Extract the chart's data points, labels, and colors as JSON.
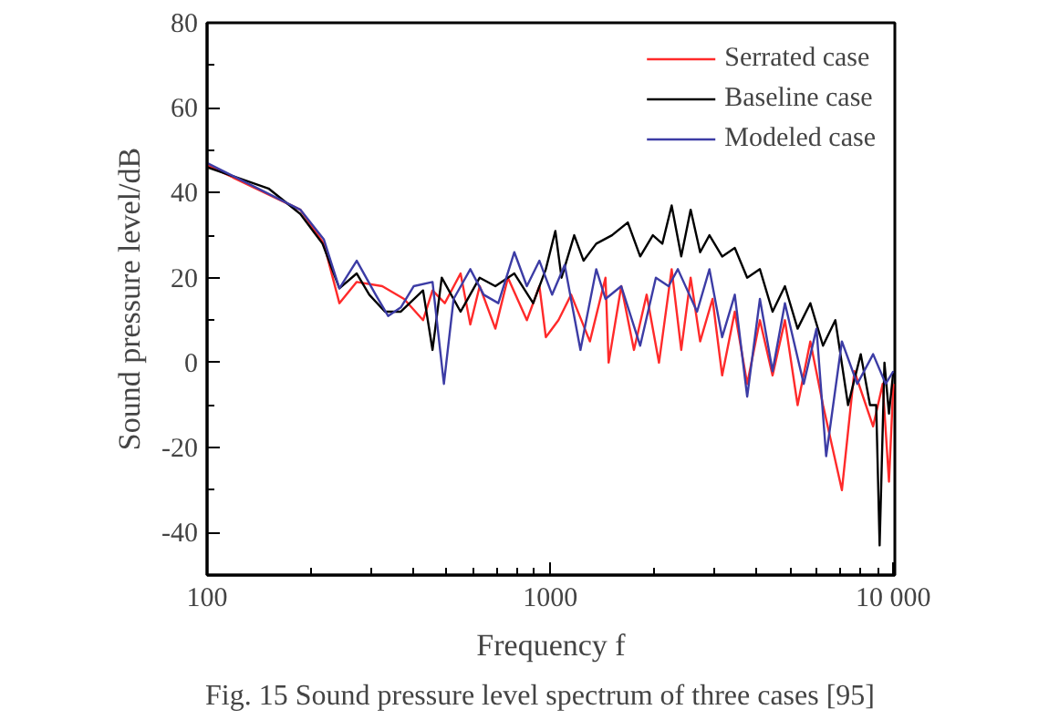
{
  "chart_data": {
    "type": "line",
    "xlabel": "Frequency f",
    "ylabel": "Sound pressure level/dB",
    "log": "x",
    "xlim": [
      100,
      10100
    ],
    "ylim": [
      -50,
      80
    ],
    "xticks": [
      100,
      {
        "value": 200,
        "label": null
      },
      {
        "value": 300,
        "label": null
      },
      {
        "value": 400,
        "label": null
      },
      {
        "value": 500,
        "label": null
      },
      {
        "value": 600,
        "label": null
      },
      {
        "value": 700,
        "label": null
      },
      {
        "value": 800,
        "label": null
      },
      {
        "value": 900,
        "label": null
      },
      1000,
      {
        "value": 2000,
        "label": null
      },
      {
        "value": 3000,
        "label": null
      },
      {
        "value": 4000,
        "label": null
      },
      {
        "value": 5000,
        "label": null
      },
      {
        "value": 6000,
        "label": null
      },
      {
        "value": 7000,
        "label": null
      },
      {
        "value": 8000,
        "label": null
      },
      {
        "value": 9000,
        "label": null
      },
      {
        "value": 10000,
        "label": "10 000"
      }
    ],
    "yticks": [
      -40,
      {
        "value": -30,
        "label": null
      },
      -20,
      {
        "value": -10,
        "label": null
      },
      0,
      {
        "value": 10,
        "label": null
      },
      20,
      {
        "value": 30,
        "label": null
      },
      40,
      {
        "value": 50,
        "label": null
      },
      60,
      {
        "value": 70,
        "label": null
      },
      80
    ],
    "grid": false,
    "legend": "top right",
    "line_style": "solid",
    "marker": "none",
    "series": [
      {
        "name": "Serrated case",
        "color": "#ff2a2a",
        "x": [
          100,
          187,
          219,
          243,
          273,
          324,
          375,
          426,
          454,
          493,
          548,
          585,
          623,
          692,
          753,
          855,
          930,
          971,
          1057,
          1151,
          1305,
          1449,
          1480,
          1611,
          1754,
          1910,
          2075,
          2259,
          2409,
          2566,
          2735,
          2972,
          3170,
          3451,
          3750,
          4084,
          4446,
          4831,
          5260,
          5728,
          6237,
          7080,
          7700,
          8730,
          9310,
          9710,
          10000
        ],
        "values": [
          46.5,
          36,
          28,
          14,
          19,
          18,
          15,
          10,
          17,
          14,
          21,
          9,
          18,
          8,
          20,
          10,
          18,
          6,
          10,
          16,
          5,
          20,
          0,
          18,
          3,
          16,
          0,
          22,
          3,
          20,
          5,
          15,
          -3,
          12,
          -5,
          10,
          -3,
          10,
          -10,
          5,
          -10,
          -30,
          -2,
          -15,
          -5,
          -28,
          -5
        ]
      },
      {
        "name": "Baseline case",
        "color": "#000000",
        "x": [
          100,
          151,
          187,
          217,
          243,
          273,
          297,
          330,
          367,
          426,
          454,
          483,
          548,
          623,
          692,
          786,
          892,
          971,
          1035,
          1079,
          1175,
          1251,
          1362,
          1514,
          1683,
          1829,
          1991,
          2122,
          2259,
          2409,
          2566,
          2735,
          2911,
          3170,
          3451,
          3750,
          4084,
          4446,
          4831,
          5260,
          5728,
          6237,
          6776,
          7379,
          8035,
          8551,
          8913,
          9120,
          9420,
          9710,
          10000
        ],
        "values": [
          46,
          41,
          35,
          28,
          17.5,
          21,
          16,
          12,
          12,
          17,
          3,
          20,
          12,
          20,
          18,
          21,
          14,
          22,
          31,
          20,
          30,
          24,
          28,
          30,
          33,
          25,
          30,
          28,
          37,
          25,
          36,
          26,
          30,
          25,
          27,
          20,
          22,
          12,
          18,
          8,
          14,
          4,
          10,
          -10,
          2,
          -10,
          -10,
          -43,
          0,
          -12,
          -2
        ]
      },
      {
        "name": "Modeled case",
        "color": "#3c3ca5",
        "x": [
          100,
          187,
          219,
          243,
          273,
          310,
          337,
          367,
          400,
          454,
          490,
          523,
          585,
          640,
          706,
          786,
          855,
          930,
          1013,
          1102,
          1225,
          1362,
          1449,
          1611,
          1829,
          2032,
          2213,
          2355,
          2679,
          2911,
          3170,
          3451,
          3750,
          4084,
          4446,
          4831,
          5480,
          5970,
          6370,
          7080,
          7850,
          8730,
          9500,
          10000
        ],
        "values": [
          47,
          36,
          29,
          17.5,
          24,
          16,
          11,
          13,
          18,
          19,
          -5,
          15,
          22,
          16,
          14,
          26,
          18,
          24,
          16,
          23,
          3,
          22,
          15,
          18,
          4,
          20,
          18,
          22,
          12,
          22,
          6,
          16,
          -8,
          15,
          -2,
          14,
          -5,
          8,
          -22,
          5,
          -5,
          2,
          -5,
          -2
        ]
      }
    ],
    "annotations": [
      "Fig. 15    Sound pressure level spectrum of three cases [95]"
    ]
  }
}
